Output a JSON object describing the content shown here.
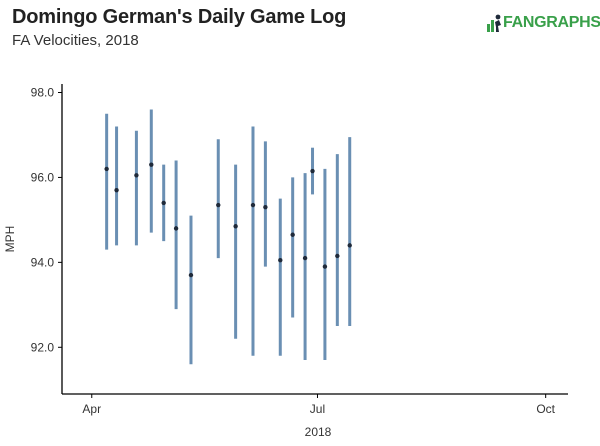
{
  "header": {
    "title": "Domingo German's Daily Game Log",
    "subtitle": "FA Velocities, 2018",
    "logo_text_fan": "FAN",
    "logo_text_graphs": "GRAPHS",
    "logo_icon": "fangraphs-player-icon"
  },
  "colors": {
    "range_bar": "#6a8fb3",
    "point": "#1f2a3a",
    "brand": "#39a04a"
  },
  "chart_data": {
    "type": "scatter",
    "title": "Domingo German's Daily Game Log",
    "subtitle": "FA Velocities, 2018",
    "xlabel": "2018",
    "ylabel": "MPH",
    "x_ticks": [
      {
        "date": "2018-04-01",
        "label": "Apr"
      },
      {
        "date": "2018-07-01",
        "label": "Jul"
      },
      {
        "date": "2018-10-01",
        "label": "Oct"
      }
    ],
    "xlim": [
      "2018-03-20",
      "2018-10-10"
    ],
    "y_ticks": [
      "92.0",
      "94.0",
      "96.0",
      "98.0"
    ],
    "ylim": [
      90.9,
      98.2
    ],
    "grid": false,
    "series": [
      {
        "points": [
          {
            "date": "2018-04-07",
            "avg": 96.2,
            "low": 94.3,
            "high": 97.5
          },
          {
            "date": "2018-04-11",
            "avg": 95.7,
            "low": 94.4,
            "high": 97.2
          },
          {
            "date": "2018-04-19",
            "avg": 96.05,
            "low": 94.4,
            "high": 97.1
          },
          {
            "date": "2018-04-25",
            "avg": 96.3,
            "low": 94.7,
            "high": 97.6
          },
          {
            "date": "2018-04-30",
            "avg": 95.4,
            "low": 94.5,
            "high": 96.3
          },
          {
            "date": "2018-05-05",
            "avg": 94.8,
            "low": 92.9,
            "high": 96.4
          },
          {
            "date": "2018-05-11",
            "avg": 93.7,
            "low": 91.6,
            "high": 95.1
          },
          {
            "date": "2018-05-22",
            "avg": 95.35,
            "low": 94.1,
            "high": 96.9
          },
          {
            "date": "2018-05-29",
            "avg": 94.85,
            "low": 92.2,
            "high": 96.3
          },
          {
            "date": "2018-06-05",
            "avg": 95.35,
            "low": 91.8,
            "high": 97.2
          },
          {
            "date": "2018-06-10",
            "avg": 95.3,
            "low": 93.9,
            "high": 96.85
          },
          {
            "date": "2018-06-16",
            "avg": 94.05,
            "low": 91.8,
            "high": 95.5
          },
          {
            "date": "2018-06-21",
            "avg": 94.65,
            "low": 92.7,
            "high": 96.0
          },
          {
            "date": "2018-06-26",
            "avg": 94.1,
            "low": 91.7,
            "high": 96.1
          },
          {
            "date": "2018-06-29",
            "avg": 96.15,
            "low": 95.6,
            "high": 96.7
          },
          {
            "date": "2018-07-04",
            "avg": 93.9,
            "low": 91.7,
            "high": 96.2
          },
          {
            "date": "2018-07-09",
            "avg": 94.15,
            "low": 92.5,
            "high": 96.55
          },
          {
            "date": "2018-07-14",
            "avg": 94.4,
            "low": 92.5,
            "high": 96.95
          }
        ]
      }
    ]
  }
}
